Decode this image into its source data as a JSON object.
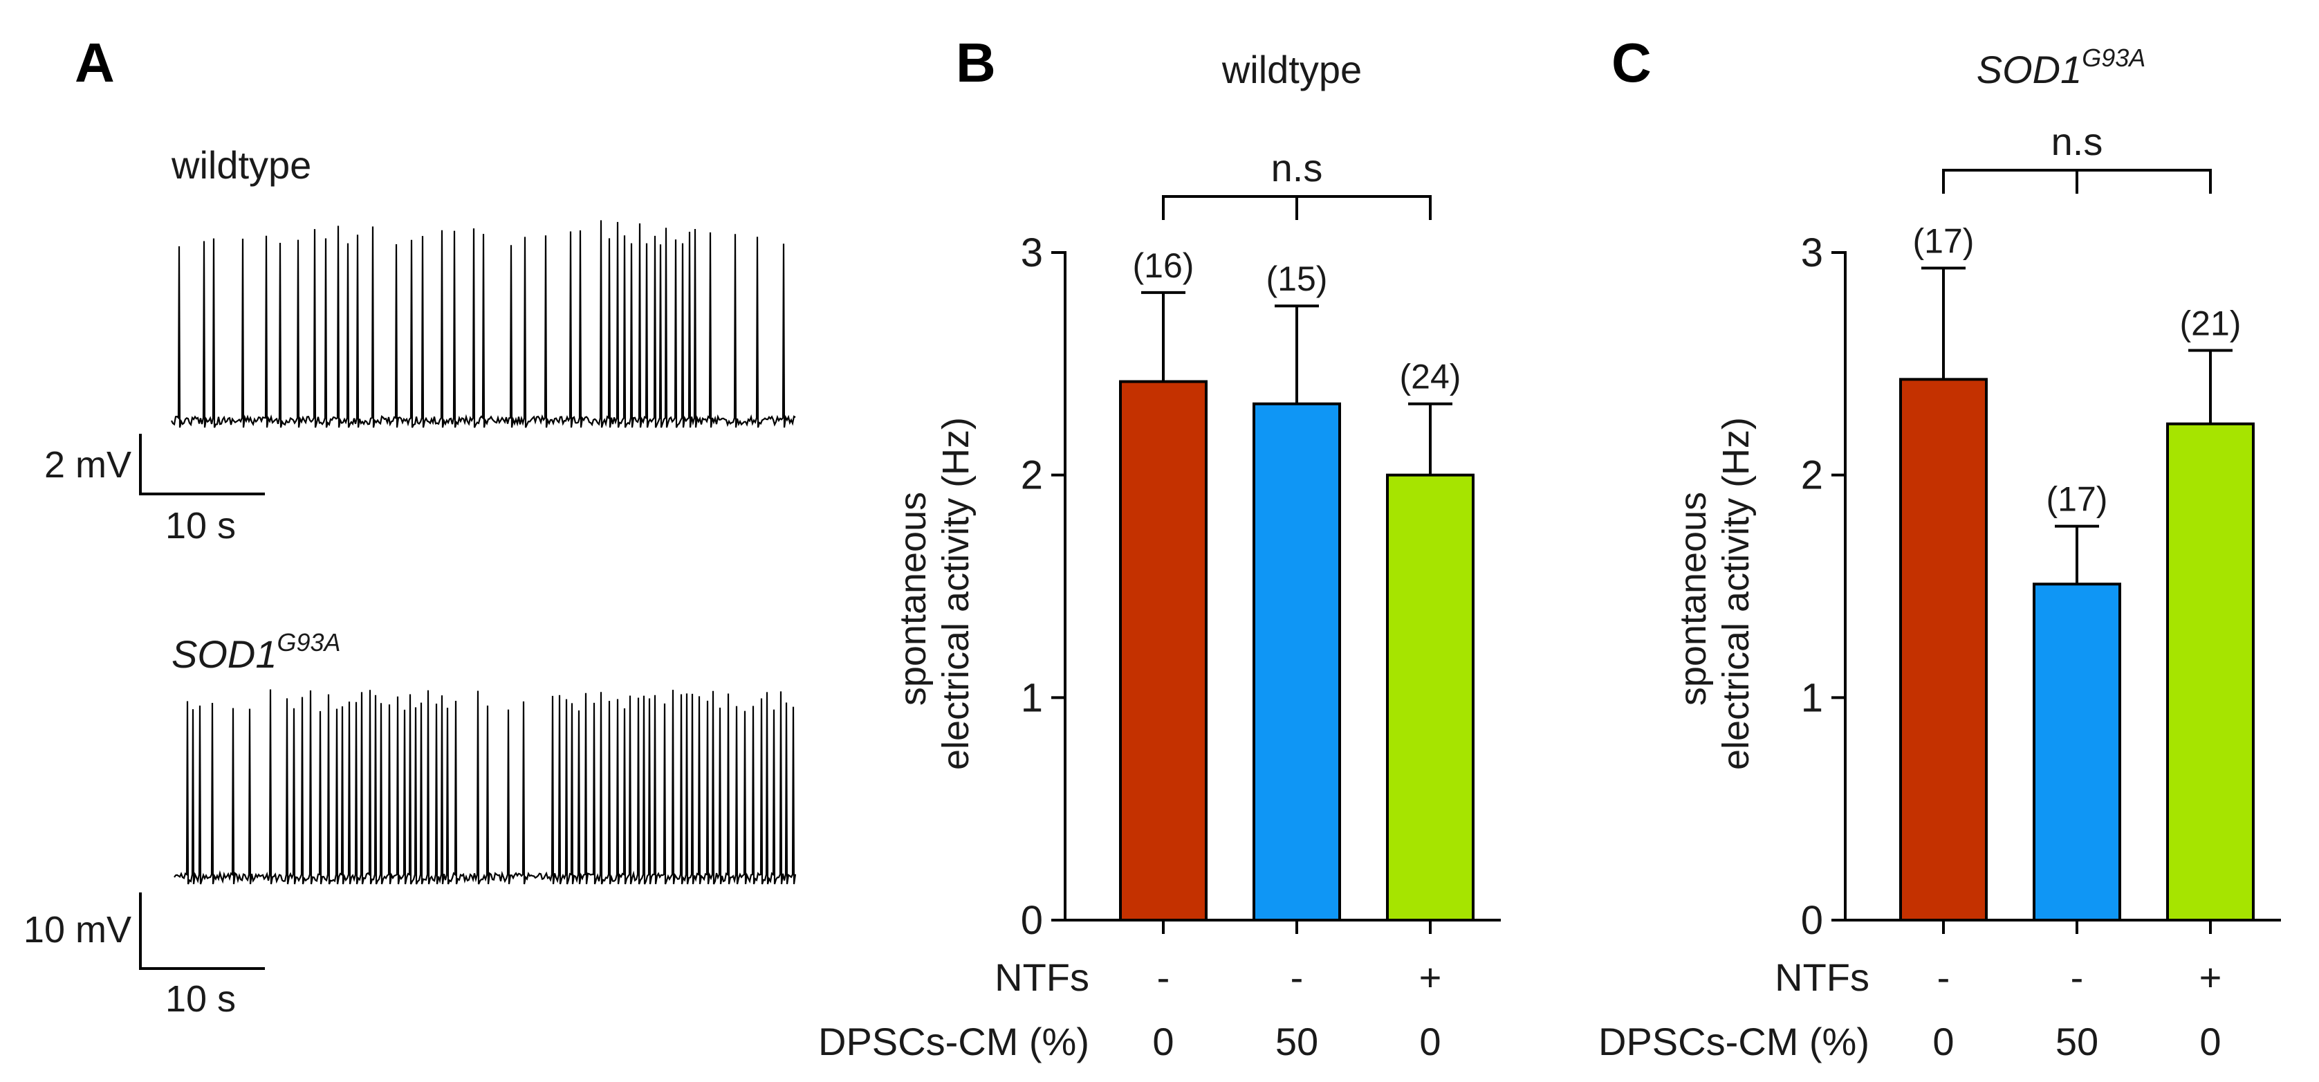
{
  "panel_A": {
    "letter": "A",
    "trace_wildtype": {
      "label": "wildtype",
      "scale_voltage": "2 mV",
      "scale_time": "10 s"
    },
    "trace_mutant": {
      "label_base": "SOD1",
      "label_sup": "G93A",
      "scale_voltage": "10 mV",
      "scale_time": "10 s"
    }
  },
  "chart_data": [
    {
      "panel": "B",
      "type": "bar",
      "title": "wildtype",
      "title_sup": "",
      "ylabel_line1": "spontaneous",
      "ylabel_line2": "electrical activity (Hz)",
      "ylim": [
        0,
        3
      ],
      "yticks": [
        "0",
        "1",
        "2",
        "3"
      ],
      "values": [
        2.42,
        2.32,
        2.0
      ],
      "errors": [
        0.4,
        0.44,
        0.32
      ],
      "n_labels": [
        "(16)",
        "(15)",
        "(24)"
      ],
      "colors": [
        "#c43100",
        "#0f96f5",
        "#a6e400"
      ],
      "row1_label": "NTFs",
      "row1": [
        "-",
        "-",
        "+"
      ],
      "row2_label": "DPSCs-CM (%)",
      "row2": [
        "0",
        "50",
        "0"
      ],
      "significance": "n.s"
    },
    {
      "panel": "C",
      "type": "bar",
      "title": "SOD1",
      "title_sup": "G93A",
      "ylabel_line1": "spontaneous",
      "ylabel_line2": "electrical activity (Hz)",
      "ylim": [
        0,
        3
      ],
      "yticks": [
        "0",
        "1",
        "2",
        "3"
      ],
      "values": [
        2.43,
        1.51,
        2.23
      ],
      "errors": [
        0.5,
        0.26,
        0.33
      ],
      "n_labels": [
        "(17)",
        "(17)",
        "(21)"
      ],
      "colors": [
        "#c43100",
        "#0f96f5",
        "#a6e400"
      ],
      "row1_label": "NTFs",
      "row1": [
        "-",
        "-",
        "+"
      ],
      "row2_label": "DPSCs-CM (%)",
      "row2": [
        "0",
        "50",
        "0"
      ],
      "significance": "n.s"
    }
  ]
}
